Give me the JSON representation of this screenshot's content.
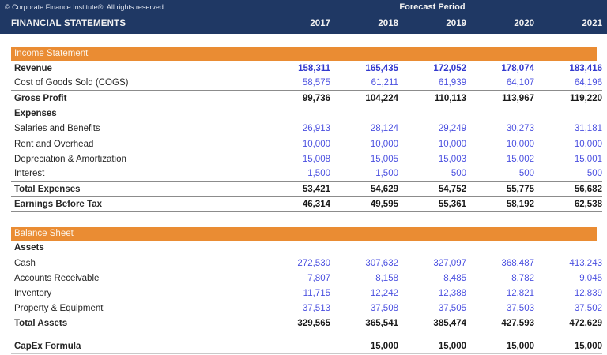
{
  "header": {
    "copyright": "© Corporate Finance Institute®. All rights reserved.",
    "forecast_period_label": "Forecast Period",
    "title": "FINANCIAL STATEMENTS",
    "years": [
      "2017",
      "2018",
      "2019",
      "2020",
      "2021"
    ]
  },
  "colors": {
    "navy_header": "#1F3864",
    "section_orange": "#EA8C33",
    "input_value_blue": "#4B50E0",
    "computed_value_black": "#1A1A1A"
  },
  "sections": [
    {
      "title": "Income Statement",
      "rows": [
        {
          "label": "Revenue",
          "label_bold": true,
          "value_style": "blue-bold",
          "border_bottom": false,
          "values": [
            "158,311",
            "165,435",
            "172,052",
            "178,074",
            "183,416"
          ]
        },
        {
          "label": "Cost of Goods Sold (COGS)",
          "label_bold": false,
          "value_style": "blue",
          "border_bottom": true,
          "values": [
            "58,575",
            "61,211",
            "61,939",
            "64,107",
            "64,196"
          ]
        },
        {
          "label": "Gross Profit",
          "label_bold": true,
          "value_style": "black-bold",
          "border_bottom": false,
          "values": [
            "99,736",
            "104,224",
            "110,113",
            "113,967",
            "119,220"
          ]
        },
        {
          "label": "Expenses",
          "label_bold": true,
          "value_style": "blue",
          "border_bottom": false,
          "values": [
            "",
            "",
            "",
            "",
            ""
          ]
        },
        {
          "label": "Salaries and Benefits",
          "label_bold": false,
          "value_style": "blue",
          "border_bottom": false,
          "values": [
            "26,913",
            "28,124",
            "29,249",
            "30,273",
            "31,181"
          ]
        },
        {
          "label": "Rent and Overhead",
          "label_bold": false,
          "value_style": "blue",
          "border_bottom": false,
          "values": [
            "10,000",
            "10,000",
            "10,000",
            "10,000",
            "10,000"
          ]
        },
        {
          "label": "Depreciation & Amortization",
          "label_bold": false,
          "value_style": "blue",
          "border_bottom": false,
          "values": [
            "15,008",
            "15,005",
            "15,003",
            "15,002",
            "15,001"
          ]
        },
        {
          "label": "Interest",
          "label_bold": false,
          "value_style": "blue",
          "border_bottom": true,
          "values": [
            "1,500",
            "1,500",
            "500",
            "500",
            "500"
          ]
        },
        {
          "label": "Total Expenses",
          "label_bold": true,
          "value_style": "black-bold",
          "border_bottom": true,
          "values": [
            "53,421",
            "54,629",
            "54,752",
            "55,775",
            "56,682"
          ]
        },
        {
          "label": "Earnings Before Tax",
          "label_bold": true,
          "value_style": "black-bold",
          "border_bottom": true,
          "values": [
            "46,314",
            "49,595",
            "55,361",
            "58,192",
            "62,538"
          ]
        }
      ]
    },
    {
      "title": "Balance Sheet",
      "rows": [
        {
          "label": "Assets",
          "label_bold": true,
          "value_style": "blue",
          "border_bottom": false,
          "values": [
            "",
            "",
            "",
            "",
            ""
          ]
        },
        {
          "label": "Cash",
          "label_bold": false,
          "value_style": "blue",
          "border_bottom": false,
          "values": [
            "272,530",
            "307,632",
            "327,097",
            "368,487",
            "413,243"
          ]
        },
        {
          "label": "Accounts Receivable",
          "label_bold": false,
          "value_style": "blue",
          "border_bottom": false,
          "values": [
            "7,807",
            "8,158",
            "8,485",
            "8,782",
            "9,045"
          ]
        },
        {
          "label": "Inventory",
          "label_bold": false,
          "value_style": "blue",
          "border_bottom": false,
          "values": [
            "11,715",
            "12,242",
            "12,388",
            "12,821",
            "12,839"
          ]
        },
        {
          "label": "Property & Equipment",
          "label_bold": false,
          "value_style": "blue",
          "border_bottom": true,
          "values": [
            "37,513",
            "37,508",
            "37,505",
            "37,503",
            "37,502"
          ]
        },
        {
          "label": "Total Assets",
          "label_bold": true,
          "value_style": "black-bold",
          "border_bottom": true,
          "values": [
            "329,565",
            "365,541",
            "385,474",
            "427,593",
            "472,629"
          ]
        }
      ]
    }
  ],
  "footer_row": {
    "label": "CapEx Formula",
    "label_bold": true,
    "value_style": "black-bold",
    "values": [
      "",
      "15,000",
      "15,000",
      "15,000",
      "15,000"
    ]
  }
}
